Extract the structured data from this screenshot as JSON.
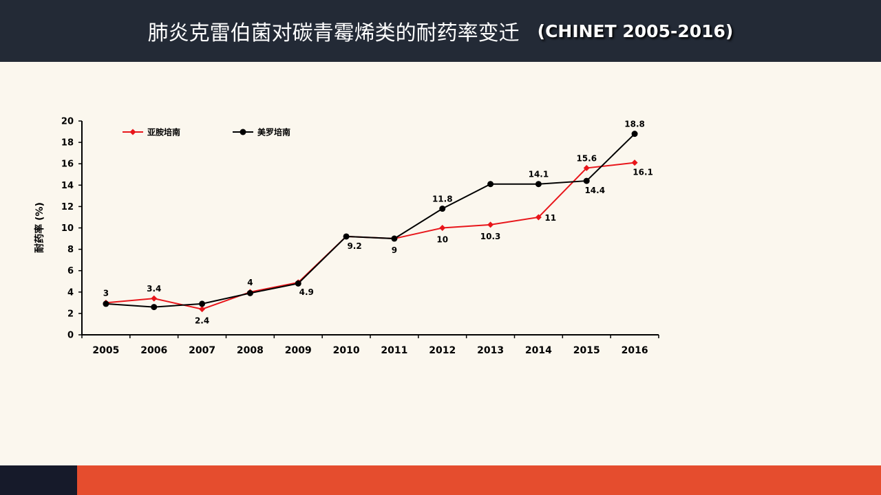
{
  "header": {
    "title_cn": "肺炎克雷伯菌对碳青霉烯类的耐药率变迁",
    "title_en": "(CHINET 2005-2016)"
  },
  "colors": {
    "header_bg": "#232a36",
    "footer_red": "#e54d2e",
    "footer_dark": "#161a2a",
    "series_red": "#e8151a",
    "series_black": "#000000"
  },
  "chart_data": {
    "type": "line",
    "title": "",
    "ylabel": "耐药率 (%)",
    "xlabel": "",
    "ylim": [
      0,
      20
    ],
    "yticks": [
      0,
      2,
      4,
      6,
      8,
      10,
      12,
      14,
      16,
      18,
      20
    ],
    "categories": [
      "2005",
      "2006",
      "2007",
      "2008",
      "2009",
      "2010",
      "2011",
      "2012",
      "2013",
      "2014",
      "2015",
      "2016"
    ],
    "legend_position": "top-left",
    "series": [
      {
        "name": "亚胺培南",
        "color": "#e8151a",
        "marker": "diamond",
        "values": [
          3,
          3.4,
          2.4,
          4,
          4.9,
          9.2,
          9,
          10,
          10.3,
          11,
          15.6,
          16.1
        ]
      },
      {
        "name": "美罗培南",
        "color": "#000000",
        "marker": "circle",
        "values": [
          2.9,
          2.6,
          2.9,
          3.9,
          4.8,
          9.2,
          9,
          11.8,
          14.1,
          14.1,
          14.4,
          18.8
        ]
      }
    ],
    "data_labels": [
      {
        "text": "3",
        "x": "2005",
        "y": 3,
        "pos": "above"
      },
      {
        "text": "3.4",
        "x": "2006",
        "y": 3.4,
        "pos": "above"
      },
      {
        "text": "2.4",
        "x": "2007",
        "y": 2.4,
        "pos": "below"
      },
      {
        "text": "4",
        "x": "2008",
        "y": 4,
        "pos": "above"
      },
      {
        "text": "4.9",
        "x": "2009",
        "y": 4.9,
        "pos": "below-right"
      },
      {
        "text": "9.2",
        "x": "2010",
        "y": 9.2,
        "pos": "below-right"
      },
      {
        "text": "9",
        "x": "2011",
        "y": 9,
        "pos": "below"
      },
      {
        "text": "11.8",
        "x": "2012",
        "y": 11.8,
        "pos": "above"
      },
      {
        "text": "10",
        "x": "2012",
        "y": 10,
        "pos": "below"
      },
      {
        "text": "10.3",
        "x": "2013",
        "y": 10.3,
        "pos": "below"
      },
      {
        "text": "14.1",
        "x": "2014",
        "y": 14.1,
        "pos": "above"
      },
      {
        "text": "11",
        "x": "2014",
        "y": 11,
        "pos": "right"
      },
      {
        "text": "15.6",
        "x": "2015",
        "y": 15.6,
        "pos": "above"
      },
      {
        "text": "14.4",
        "x": "2015",
        "y": 14.4,
        "pos": "below-right"
      },
      {
        "text": "18.8",
        "x": "2016",
        "y": 18.8,
        "pos": "above"
      },
      {
        "text": "16.1",
        "x": "2016",
        "y": 16.1,
        "pos": "below-right"
      }
    ]
  }
}
